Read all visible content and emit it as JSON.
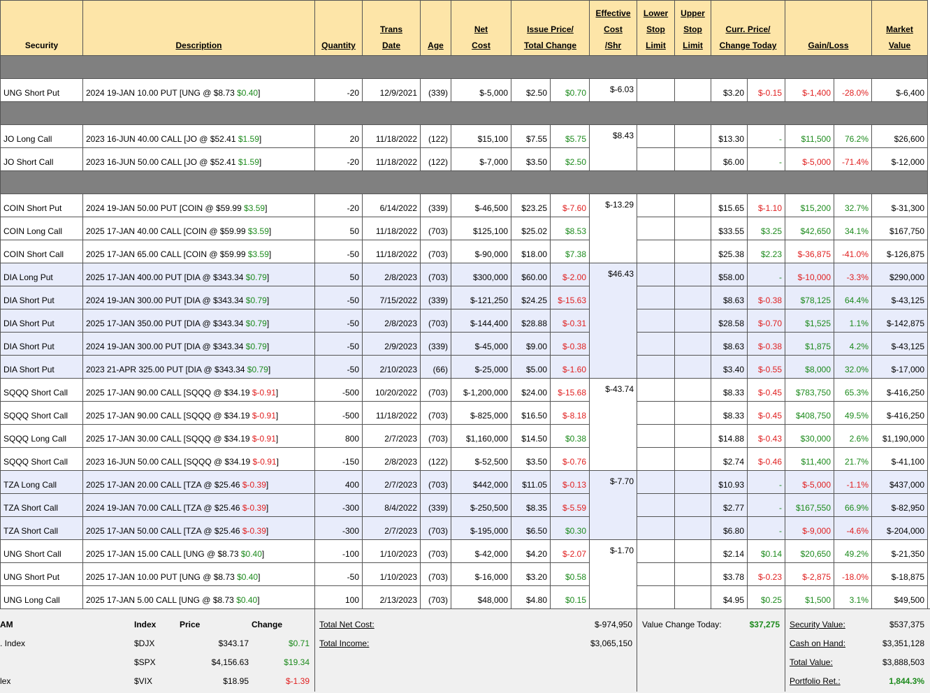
{
  "headers": {
    "security": "Security",
    "description": "Description",
    "quantity": "Quantity",
    "trans_date": [
      "Trans",
      "Date"
    ],
    "age": "Age",
    "net_cost": [
      "Net",
      "Cost"
    ],
    "issue_price": [
      "Issue Price/",
      "Total Change"
    ],
    "effective_cost": [
      "Effective",
      "Cost",
      "/Shr"
    ],
    "lower_stop": [
      "Lower",
      "Stop",
      "Limit"
    ],
    "upper_stop": [
      "Upper",
      "Stop",
      "Limit"
    ],
    "curr_price": [
      "Curr. Price/",
      "Change Today"
    ],
    "gain_loss": "Gain/Loss",
    "market_value": [
      "Market",
      "Value"
    ]
  },
  "rows": [
    {
      "sep": true
    },
    {
      "security": "UNG Short Put",
      "desc": "2024 19-JAN 10.00 PUT [UNG @ $8.73 ",
      "desc_chg": "$0.40",
      "desc_chg_color": "g",
      "desc_end": "]",
      "qty": "-20",
      "date": "12/9/2021",
      "age": "(339)",
      "net": "$-5,000",
      "issue": "$2.50",
      "tchg": "$0.70",
      "tchg_color": "g",
      "eff": "$-6.03",
      "eff_span": 1,
      "curr": "$3.20",
      "ctoday": "$-0.15",
      "ctoday_color": "red",
      "gl": "$-1,400",
      "gl_color": "red",
      "pct": "-28.0%",
      "pct_color": "red",
      "mv": "$-6,400",
      "blue": false
    },
    {
      "sep": true
    },
    {
      "security": "JO Long Call",
      "desc": "2023 16-JUN 40.00 CALL [JO @ $52.41 ",
      "desc_chg": "$1.59",
      "desc_chg_color": "g",
      "desc_end": "]",
      "qty": "20",
      "date": "11/18/2022",
      "age": "(122)",
      "net": "$15,100",
      "issue": "$7.55",
      "tchg": "$5.75",
      "tchg_color": "g",
      "eff": "$8.43",
      "eff_span": 2,
      "curr": "$13.30",
      "ctoday": "-",
      "ctoday_color": "g",
      "gl": "$11,500",
      "gl_color": "g",
      "pct": "76.2%",
      "pct_color": "g",
      "mv": "$26,600",
      "blue": false
    },
    {
      "security": "JO Short Call",
      "desc": "2023 16-JUN 50.00 CALL [JO @ $52.41 ",
      "desc_chg": "$1.59",
      "desc_chg_color": "g",
      "desc_end": "]",
      "qty": "-20",
      "date": "11/18/2022",
      "age": "(122)",
      "net": "$-7,000",
      "issue": "$3.50",
      "tchg": "$2.50",
      "tchg_color": "g",
      "eff": null,
      "curr": "$6.00",
      "ctoday": "-",
      "ctoday_color": "g",
      "gl": "$-5,000",
      "gl_color": "red",
      "pct": "-71.4%",
      "pct_color": "red",
      "mv": "$-12,000",
      "blue": false
    },
    {
      "sep": true
    },
    {
      "security": "COIN Short Put",
      "desc": "2024 19-JAN 50.00 PUT [COIN @ $59.99 ",
      "desc_chg": "$3.59",
      "desc_chg_color": "g",
      "desc_end": "]",
      "qty": "-20",
      "date": "6/14/2022",
      "age": "(339)",
      "net": "$-46,500",
      "issue": "$23.25",
      "tchg": "$-7.60",
      "tchg_color": "red",
      "eff": "$-13.29",
      "eff_span": 3,
      "curr": "$15.65",
      "ctoday": "$-1.10",
      "ctoday_color": "red",
      "gl": "$15,200",
      "gl_color": "g",
      "pct": "32.7%",
      "pct_color": "g",
      "mv": "$-31,300",
      "blue": false
    },
    {
      "security": "COIN Long Call",
      "desc": "2025 17-JAN 40.00 CALL [COIN @ $59.99 ",
      "desc_chg": "$3.59",
      "desc_chg_color": "g",
      "desc_end": "]",
      "qty": "50",
      "date": "11/18/2022",
      "age": "(703)",
      "net": "$125,100",
      "issue": "$25.02",
      "tchg": "$8.53",
      "tchg_color": "g",
      "eff": null,
      "curr": "$33.55",
      "ctoday": "$3.25",
      "ctoday_color": "g",
      "gl": "$42,650",
      "gl_color": "g",
      "pct": "34.1%",
      "pct_color": "g",
      "mv": "$167,750",
      "blue": false
    },
    {
      "security": "COIN Short Call",
      "desc": "2025 17-JAN 65.00 CALL [COIN @ $59.99 ",
      "desc_chg": "$3.59",
      "desc_chg_color": "g",
      "desc_end": "]",
      "qty": "-50",
      "date": "11/18/2022",
      "age": "(703)",
      "net": "$-90,000",
      "issue": "$18.00",
      "tchg": "$7.38",
      "tchg_color": "g",
      "eff": null,
      "curr": "$25.38",
      "ctoday": "$2.23",
      "ctoday_color": "g",
      "gl": "$-36,875",
      "gl_color": "red",
      "pct": "-41.0%",
      "pct_color": "red",
      "mv": "$-126,875",
      "blue": false
    },
    {
      "security": "DIA Long Put",
      "desc": "2025 17-JAN 400.00 PUT [DIA @ $343.34 ",
      "desc_chg": "$0.79",
      "desc_chg_color": "g",
      "desc_end": "]",
      "qty": "50",
      "date": "2/8/2023",
      "age": "(703)",
      "net": "$300,000",
      "issue": "$60.00",
      "tchg": "$-2.00",
      "tchg_color": "red",
      "eff": "$46.43",
      "eff_span": 5,
      "curr": "$58.00",
      "ctoday": "-",
      "ctoday_color": "g",
      "gl": "$-10,000",
      "gl_color": "red",
      "pct": "-3.3%",
      "pct_color": "red",
      "mv": "$290,000",
      "blue": true
    },
    {
      "security": "DIA Short Put",
      "desc": "2024 19-JAN 300.00 PUT [DIA @ $343.34 ",
      "desc_chg": "$0.79",
      "desc_chg_color": "g",
      "desc_end": "]",
      "qty": "-50",
      "date": "7/15/2022",
      "age": "(339)",
      "net": "$-121,250",
      "issue": "$24.25",
      "tchg": "$-15.63",
      "tchg_color": "red",
      "eff": null,
      "curr": "$8.63",
      "ctoday": "$-0.38",
      "ctoday_color": "red",
      "gl": "$78,125",
      "gl_color": "g",
      "pct": "64.4%",
      "pct_color": "g",
      "mv": "$-43,125",
      "blue": true
    },
    {
      "security": "DIA Short Put",
      "desc": "2025 17-JAN 350.00 PUT [DIA @ $343.34 ",
      "desc_chg": "$0.79",
      "desc_chg_color": "g",
      "desc_end": "]",
      "qty": "-50",
      "date": "2/8/2023",
      "age": "(703)",
      "net": "$-144,400",
      "issue": "$28.88",
      "tchg": "$-0.31",
      "tchg_color": "red",
      "eff": null,
      "curr": "$28.58",
      "ctoday": "$-0.70",
      "ctoday_color": "red",
      "gl": "$1,525",
      "gl_color": "g",
      "pct": "1.1%",
      "pct_color": "g",
      "mv": "$-142,875",
      "blue": true
    },
    {
      "security": "DIA Short Put",
      "desc": "2024 19-JAN 300.00 PUT [DIA @ $343.34 ",
      "desc_chg": "$0.79",
      "desc_chg_color": "g",
      "desc_end": "]",
      "qty": "-50",
      "date": "2/9/2023",
      "age": "(339)",
      "net": "$-45,000",
      "issue": "$9.00",
      "tchg": "$-0.38",
      "tchg_color": "red",
      "eff": null,
      "curr": "$8.63",
      "ctoday": "$-0.38",
      "ctoday_color": "red",
      "gl": "$1,875",
      "gl_color": "g",
      "pct": "4.2%",
      "pct_color": "g",
      "mv": "$-43,125",
      "blue": true
    },
    {
      "security": "DIA Short Put",
      "desc": "2023 21-APR 325.00 PUT [DIA @ $343.34 ",
      "desc_chg": "$0.79",
      "desc_chg_color": "g",
      "desc_end": "]",
      "qty": "-50",
      "date": "2/10/2023",
      "age": "(66)",
      "net": "$-25,000",
      "issue": "$5.00",
      "tchg": "$-1.60",
      "tchg_color": "red",
      "eff": null,
      "curr": "$3.40",
      "ctoday": "$-0.55",
      "ctoday_color": "red",
      "gl": "$8,000",
      "gl_color": "g",
      "pct": "32.0%",
      "pct_color": "g",
      "mv": "$-17,000",
      "blue": true
    },
    {
      "security": "SQQQ Short Call",
      "desc": "2025 17-JAN 90.00 CALL [SQQQ @ $34.19 ",
      "desc_chg": "$-0.91",
      "desc_chg_color": "red",
      "desc_end": "]",
      "qty": "-500",
      "date": "10/20/2022",
      "age": "(703)",
      "net": "$-1,200,000",
      "issue": "$24.00",
      "tchg": "$-15.68",
      "tchg_color": "red",
      "eff": "$-43.74",
      "eff_span": 4,
      "curr": "$8.33",
      "ctoday": "$-0.45",
      "ctoday_color": "red",
      "gl": "$783,750",
      "gl_color": "g",
      "pct": "65.3%",
      "pct_color": "g",
      "mv": "$-416,250",
      "blue": false
    },
    {
      "security": "SQQQ Short Call",
      "desc": "2025 17-JAN 90.00 CALL [SQQQ @ $34.19 ",
      "desc_chg": "$-0.91",
      "desc_chg_color": "red",
      "desc_end": "]",
      "qty": "-500",
      "date": "11/18/2022",
      "age": "(703)",
      "net": "$-825,000",
      "issue": "$16.50",
      "tchg": "$-8.18",
      "tchg_color": "red",
      "eff": null,
      "curr": "$8.33",
      "ctoday": "$-0.45",
      "ctoday_color": "red",
      "gl": "$408,750",
      "gl_color": "g",
      "pct": "49.5%",
      "pct_color": "g",
      "mv": "$-416,250",
      "blue": false
    },
    {
      "security": "SQQQ Long Call",
      "desc": "2025 17-JAN 30.00 CALL [SQQQ @ $34.19 ",
      "desc_chg": "$-0.91",
      "desc_chg_color": "red",
      "desc_end": "]",
      "qty": "800",
      "date": "2/7/2023",
      "age": "(703)",
      "net": "$1,160,000",
      "issue": "$14.50",
      "tchg": "$0.38",
      "tchg_color": "g",
      "eff": null,
      "curr": "$14.88",
      "ctoday": "$-0.43",
      "ctoday_color": "red",
      "gl": "$30,000",
      "gl_color": "g",
      "pct": "2.6%",
      "pct_color": "g",
      "mv": "$1,190,000",
      "blue": false
    },
    {
      "security": "SQQQ Short Call",
      "desc": "2023 16-JUN 50.00 CALL [SQQQ @ $34.19 ",
      "desc_chg": "$-0.91",
      "desc_chg_color": "red",
      "desc_end": "]",
      "qty": "-150",
      "date": "2/8/2023",
      "age": "(122)",
      "net": "$-52,500",
      "issue": "$3.50",
      "tchg": "$-0.76",
      "tchg_color": "red",
      "eff": null,
      "curr": "$2.74",
      "ctoday": "$-0.46",
      "ctoday_color": "red",
      "gl": "$11,400",
      "gl_color": "g",
      "pct": "21.7%",
      "pct_color": "g",
      "mv": "$-41,100",
      "blue": false
    },
    {
      "security": "TZA Long Call",
      "desc": "2025 17-JAN 20.00 CALL [TZA @ $25.46 ",
      "desc_chg": "$-0.39",
      "desc_chg_color": "red",
      "desc_end": "]",
      "qty": "400",
      "date": "2/7/2023",
      "age": "(703)",
      "net": "$442,000",
      "issue": "$11.05",
      "tchg": "$-0.13",
      "tchg_color": "red",
      "eff": "$-7.70",
      "eff_span": 3,
      "curr": "$10.93",
      "ctoday": "-",
      "ctoday_color": "g",
      "gl": "$-5,000",
      "gl_color": "red",
      "pct": "-1.1%",
      "pct_color": "red",
      "mv": "$437,000",
      "blue": true
    },
    {
      "security": "TZA Short Call",
      "desc": "2024 19-JAN 70.00 CALL [TZA @ $25.46 ",
      "desc_chg": "$-0.39",
      "desc_chg_color": "red",
      "desc_end": "]",
      "qty": "-300",
      "date": "8/4/2022",
      "age": "(339)",
      "net": "$-250,500",
      "issue": "$8.35",
      "tchg": "$-5.59",
      "tchg_color": "red",
      "eff": null,
      "curr": "$2.77",
      "ctoday": "-",
      "ctoday_color": "g",
      "gl": "$167,550",
      "gl_color": "g",
      "pct": "66.9%",
      "pct_color": "g",
      "mv": "$-82,950",
      "blue": true
    },
    {
      "security": "TZA Short Call",
      "desc": "2025 17-JAN 50.00 CALL [TZA @ $25.46 ",
      "desc_chg": "$-0.39",
      "desc_chg_color": "red",
      "desc_end": "]",
      "qty": "-300",
      "date": "2/7/2023",
      "age": "(703)",
      "net": "$-195,000",
      "issue": "$6.50",
      "tchg": "$0.30",
      "tchg_color": "g",
      "eff": null,
      "curr": "$6.80",
      "ctoday": "-",
      "ctoday_color": "g",
      "gl": "$-9,000",
      "gl_color": "red",
      "pct": "-4.6%",
      "pct_color": "red",
      "mv": "$-204,000",
      "blue": true
    },
    {
      "security": "UNG Short Call",
      "desc": "2025 17-JAN 15.00 CALL [UNG @ $8.73 ",
      "desc_chg": "$0.40",
      "desc_chg_color": "g",
      "desc_end": "]",
      "qty": "-100",
      "date": "1/10/2023",
      "age": "(703)",
      "net": "$-42,000",
      "issue": "$4.20",
      "tchg": "$-2.07",
      "tchg_color": "red",
      "eff": "$-1.70",
      "eff_span": 3,
      "curr": "$2.14",
      "ctoday": "$0.14",
      "ctoday_color": "g",
      "gl": "$20,650",
      "gl_color": "g",
      "pct": "49.2%",
      "pct_color": "g",
      "mv": "$-21,350",
      "blue": false
    },
    {
      "security": "UNG Short Put",
      "desc": "2025 17-JAN 10.00 PUT [UNG @ $8.73 ",
      "desc_chg": "$0.40",
      "desc_chg_color": "g",
      "desc_end": "]",
      "qty": "-50",
      "date": "1/10/2023",
      "age": "(703)",
      "net": "$-16,000",
      "issue": "$3.20",
      "tchg": "$0.58",
      "tchg_color": "g",
      "eff": null,
      "curr": "$3.78",
      "ctoday": "$-0.23",
      "ctoday_color": "red",
      "gl": "$-2,875",
      "gl_color": "red",
      "pct": "-18.0%",
      "pct_color": "red",
      "mv": "$-18,875",
      "blue": false
    },
    {
      "security": "UNG Long Call",
      "desc": "2025 17-JAN 5.00 CALL [UNG @ $8.73 ",
      "desc_chg": "$0.40",
      "desc_chg_color": "g",
      "desc_end": "]",
      "qty": "100",
      "date": "2/13/2023",
      "age": "(703)",
      "net": "$48,000",
      "issue": "$4.80",
      "tchg": "$0.15",
      "tchg_color": "g",
      "eff": null,
      "curr": "$4.95",
      "ctoday": "$0.25",
      "ctoday_color": "g",
      "gl": "$1,500",
      "gl_color": "g",
      "pct": "3.1%",
      "pct_color": "g",
      "mv": "$49,500",
      "blue": false
    }
  ],
  "footer": {
    "index_header": {
      "name": "AM",
      "index": "Index",
      "price": "Price",
      "change": "Change"
    },
    "indices": [
      {
        "name": ". Index",
        "symbol": "$DJX",
        "price": "$343.17",
        "change": "$0.71",
        "color": "g"
      },
      {
        "name": "",
        "symbol": "$SPX",
        "price": "$4,156.63",
        "change": "$19.34",
        "color": "g"
      },
      {
        "name": "lex",
        "symbol": "$VIX",
        "price": "$18.95",
        "change": "$-1.39",
        "color": "red"
      }
    ],
    "total_net_cost_label": "Total Net Cost:",
    "total_net_cost": "$-974,950",
    "total_income_label": "Total Income:",
    "total_income": "$3,065,150",
    "value_change_label": "Value Change Today:",
    "value_change": "$37,275",
    "security_value_label": "Security Value:",
    "security_value": "$537,375",
    "cash_label": "Cash on Hand:",
    "cash": "$3,351,128",
    "total_value_label": "Total Value:",
    "total_value": "$3,888,503",
    "portfolio_ret_label": "Portfolio Ret.:",
    "portfolio_ret": "1,844.3%"
  }
}
